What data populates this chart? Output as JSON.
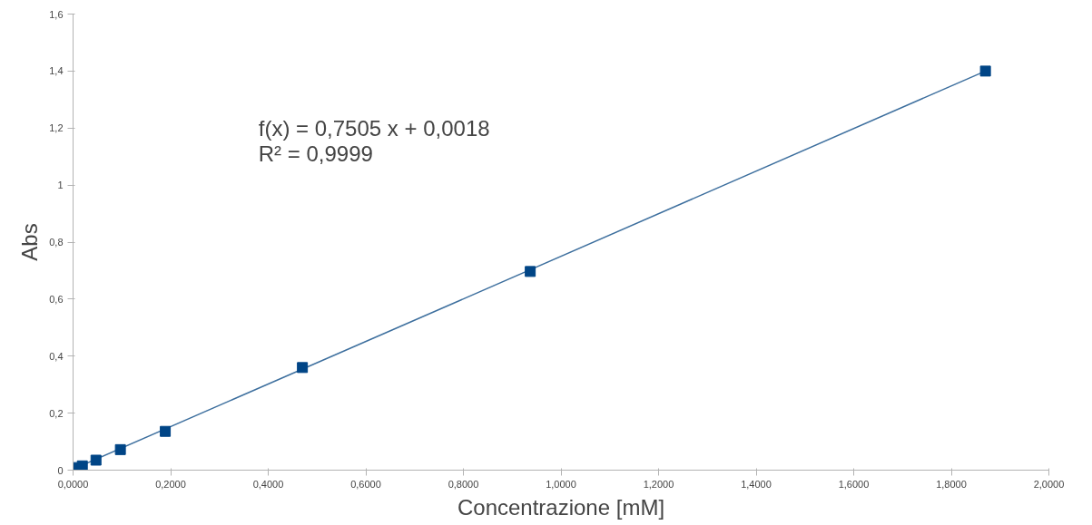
{
  "chart_data": {
    "type": "scatter",
    "xlabel": "Concentrazione [mM]",
    "ylabel": "Abs",
    "grid": false,
    "xlim": [
      0,
      2
    ],
    "ylim": [
      0,
      1.6
    ],
    "xticks": [
      {
        "value": 0,
        "label": "0,0000"
      },
      {
        "value": 0.2,
        "label": "0,2000"
      },
      {
        "value": 0.4,
        "label": "0,4000"
      },
      {
        "value": 0.6,
        "label": "0,6000"
      },
      {
        "value": 0.8,
        "label": "0,8000"
      },
      {
        "value": 1.0,
        "label": "1,0000"
      },
      {
        "value": 1.2,
        "label": "1,2000"
      },
      {
        "value": 1.4,
        "label": "1,4000"
      },
      {
        "value": 1.6,
        "label": "1,6000"
      },
      {
        "value": 1.8,
        "label": "1,8000"
      },
      {
        "value": 2.0,
        "label": "2,0000"
      }
    ],
    "yticks": [
      0,
      {
        "value": 0.2,
        "label": "0,2"
      },
      {
        "value": 0.4,
        "label": "0,4"
      },
      {
        "value": 0.6,
        "label": "0,6"
      },
      {
        "value": 0.8,
        "label": "0,8"
      },
      1,
      {
        "value": 1.2,
        "label": "1,2"
      },
      {
        "value": 1.4,
        "label": "1,4"
      },
      {
        "value": 1.6,
        "label": "1,6"
      }
    ],
    "annotations": [
      "f(x) = 0,7505 x + 0,0018",
      "R² = 0,9999"
    ],
    "series": [
      {
        "marker": "square",
        "color": "#004586",
        "x": [
          0.009,
          0.019,
          0.047,
          0.097,
          0.189,
          0.47,
          0.937,
          1.87
        ],
        "values": [
          0.009,
          0.015,
          0.035,
          0.072,
          0.136,
          0.36,
          0.697,
          1.4
        ]
      },
      {
        "type": "line",
        "marker": "none",
        "color": "#3d6f9e",
        "x": [
          0.009,
          1.87
        ],
        "values": [
          0.01,
          1.4
        ]
      }
    ]
  }
}
